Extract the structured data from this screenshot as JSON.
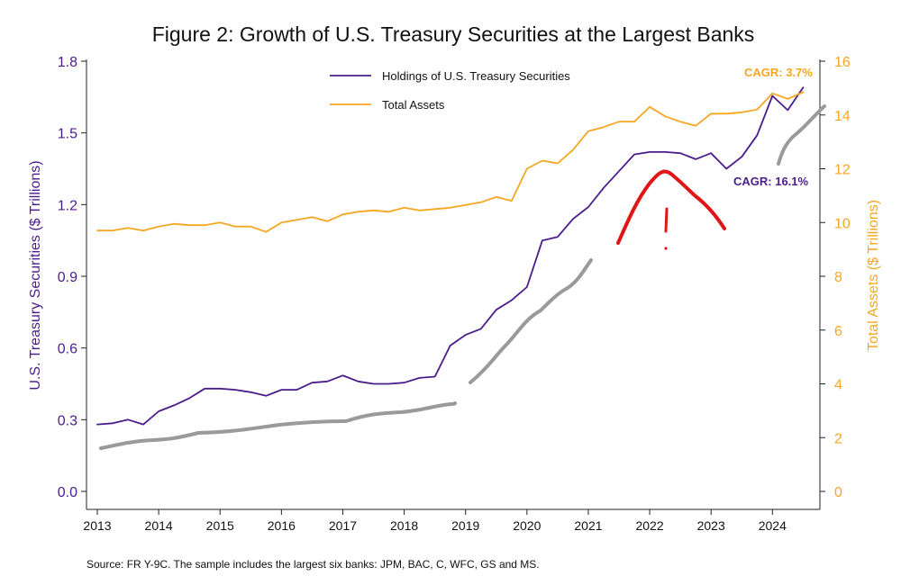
{
  "chart_data": {
    "type": "line",
    "title": "Figure 2: Growth of U.S. Treasury Securities at the Largest Banks",
    "source": "Source: FR Y-9C. The sample includes the largest six banks: JPM, BAC, C, WFC, GS and MS.",
    "left_axis": {
      "label": "U.S. Treasury Securities ($ Trillions)",
      "ylim": [
        0,
        1.8
      ],
      "ticks": [
        "0.0",
        "0.3",
        "0.6",
        "0.9",
        "1.2",
        "1.5",
        "1.8"
      ],
      "color": "#4b1c8c"
    },
    "right_axis": {
      "label": "Total Assets ($ Trillions)",
      "ylim": [
        0,
        16
      ],
      "ticks": [
        "0",
        "2",
        "4",
        "6",
        "8",
        "10",
        "12",
        "14",
        "16"
      ],
      "color": "#f5a623"
    },
    "x_axis": {
      "xlim": [
        2013,
        2024.7
      ],
      "ticks": [
        "2013",
        "2014",
        "2015",
        "2016",
        "2017",
        "2018",
        "2019",
        "2020",
        "2021",
        "2022",
        "2023",
        "2024"
      ]
    },
    "legend": {
      "placement": "top-center",
      "entries": [
        {
          "label": "Holdings of U.S. Treasury Securities",
          "color": "#4b1c8c"
        },
        {
          "label": "Total Assets",
          "color": "#f5a623"
        }
      ]
    },
    "annotations": [
      {
        "text": "CAGR: 3.7%",
        "color": "#f5a623",
        "x": 2024.0,
        "y_right": 15.5
      },
      {
        "text": "CAGR: 16.1%",
        "color": "#4b1c8c",
        "x": 2023.6,
        "y_right": 11.4
      }
    ],
    "series": [
      {
        "name": "Holdings of U.S. Treasury Securities",
        "axis": "left",
        "color": "#4b1c8c",
        "x": [
          2013.0,
          2013.25,
          2013.5,
          2013.75,
          2014.0,
          2014.25,
          2014.5,
          2014.75,
          2015.0,
          2015.25,
          2015.5,
          2015.75,
          2016.0,
          2016.25,
          2016.5,
          2016.75,
          2017.0,
          2017.25,
          2017.5,
          2017.75,
          2018.0,
          2018.25,
          2018.5,
          2018.75,
          2019.0,
          2019.25,
          2019.5,
          2019.75,
          2020.0,
          2020.25,
          2020.5,
          2020.75,
          2021.0,
          2021.25,
          2021.5,
          2021.75,
          2022.0,
          2022.25,
          2022.5,
          2022.75,
          2023.0,
          2023.25,
          2023.5,
          2023.75,
          2024.0,
          2024.25,
          2024.5
        ],
        "y": [
          0.28,
          0.285,
          0.3,
          0.28,
          0.335,
          0.36,
          0.39,
          0.43,
          0.43,
          0.425,
          0.415,
          0.4,
          0.425,
          0.425,
          0.455,
          0.46,
          0.485,
          0.46,
          0.45,
          0.45,
          0.455,
          0.475,
          0.48,
          0.61,
          0.655,
          0.68,
          0.76,
          0.8,
          0.855,
          1.05,
          1.065,
          1.14,
          1.19,
          1.27,
          1.34,
          1.41,
          1.42,
          1.42,
          1.415,
          1.39,
          1.415,
          1.35,
          1.4,
          1.49,
          1.655,
          1.595,
          1.69
        ]
      },
      {
        "name": "Total Assets",
        "axis": "right",
        "color": "#f5a623",
        "x": [
          2013.0,
          2013.25,
          2013.5,
          2013.75,
          2014.0,
          2014.25,
          2014.5,
          2014.75,
          2015.0,
          2015.25,
          2015.5,
          2015.75,
          2016.0,
          2016.25,
          2016.5,
          2016.75,
          2017.0,
          2017.25,
          2017.5,
          2017.75,
          2018.0,
          2018.25,
          2018.5,
          2018.75,
          2019.0,
          2019.25,
          2019.5,
          2019.75,
          2020.0,
          2020.25,
          2020.5,
          2020.75,
          2021.0,
          2021.25,
          2021.5,
          2021.75,
          2022.0,
          2022.25,
          2022.5,
          2022.75,
          2023.0,
          2023.25,
          2023.5,
          2023.75,
          2024.0,
          2024.25,
          2024.5
        ],
        "y": [
          9.7,
          9.7,
          9.8,
          9.7,
          9.85,
          9.95,
          9.9,
          9.9,
          10.0,
          9.85,
          9.85,
          9.65,
          10.0,
          10.1,
          10.2,
          10.05,
          10.3,
          10.4,
          10.45,
          10.4,
          10.55,
          10.45,
          10.5,
          10.55,
          10.65,
          10.75,
          10.95,
          10.8,
          12.0,
          12.3,
          12.2,
          12.7,
          13.4,
          13.55,
          13.75,
          13.75,
          14.3,
          13.95,
          13.75,
          13.6,
          14.05,
          14.05,
          14.1,
          14.2,
          14.8,
          14.6,
          14.85
        ]
      }
    ]
  }
}
